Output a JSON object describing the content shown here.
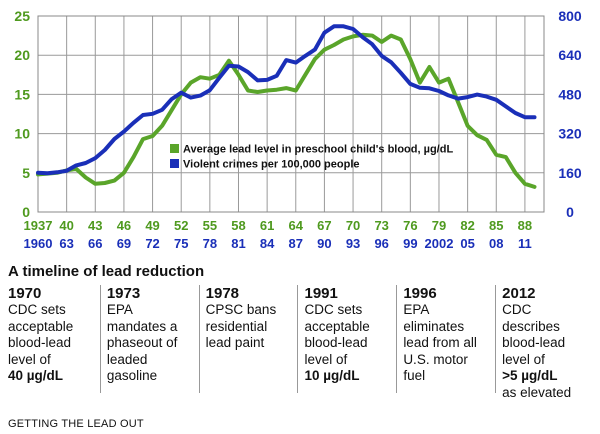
{
  "chart_data": {
    "type": "line",
    "title": "",
    "left_axis": {
      "ylim": [
        0,
        25
      ],
      "ticks": [
        0,
        5,
        10,
        15,
        20,
        25
      ],
      "color": "#5aa52a"
    },
    "right_axis": {
      "ylim": [
        0,
        800
      ],
      "ticks": [
        0,
        160,
        320,
        480,
        640,
        800
      ],
      "color": "#1a2fb8"
    },
    "x_labels_lead_years": [
      "1937",
      "40",
      "43",
      "46",
      "49",
      "52",
      "55",
      "58",
      "61",
      "64",
      "67",
      "70",
      "73",
      "76",
      "79",
      "82",
      "85",
      "88"
    ],
    "x_labels_crime_years": [
      "1960",
      "63",
      "66",
      "69",
      "72",
      "75",
      "78",
      "81",
      "84",
      "87",
      "90",
      "93",
      "96",
      "99",
      "2002",
      "05",
      "08",
      "11"
    ],
    "grid": true,
    "legend_position": "center",
    "series": [
      {
        "name": "Average lead level in preschool child's blood, µg/dL",
        "axis": "left",
        "color": "#5aa52a",
        "x": [
          1937,
          1938,
          1939,
          1940,
          1941,
          1942,
          1943,
          1944,
          1945,
          1946,
          1947,
          1948,
          1949,
          1950,
          1951,
          1952,
          1953,
          1954,
          1955,
          1956,
          1957,
          1958,
          1959,
          1960,
          1961,
          1962,
          1963,
          1964,
          1965,
          1966,
          1967,
          1968,
          1969,
          1970,
          1971,
          1972,
          1973,
          1974,
          1975,
          1976,
          1977,
          1978,
          1979,
          1980,
          1981,
          1982,
          1983,
          1984,
          1985,
          1986,
          1987,
          1988,
          1989
        ],
        "values": [
          4.8,
          4.9,
          5.0,
          5.3,
          5.5,
          4.4,
          3.6,
          3.7,
          4.0,
          5.0,
          7.0,
          9.3,
          9.7,
          11.0,
          13.0,
          15.0,
          16.5,
          17.2,
          17.0,
          17.5,
          19.3,
          17.5,
          15.5,
          15.3,
          15.5,
          15.6,
          15.8,
          15.5,
          17.5,
          19.5,
          20.7,
          21.3,
          22.0,
          22.4,
          22.6,
          22.5,
          21.7,
          22.5,
          22.0,
          19.5,
          16.5,
          18.5,
          16.5,
          17.0,
          14.0,
          11.0,
          9.8,
          9.2,
          7.3,
          7.0,
          5.0,
          3.6,
          3.2
        ]
      },
      {
        "name": "Violent crimes per 100,000 people",
        "axis": "right",
        "color": "#1a2fb8",
        "x": [
          1960,
          1961,
          1962,
          1963,
          1964,
          1965,
          1966,
          1967,
          1968,
          1969,
          1970,
          1971,
          1972,
          1973,
          1974,
          1975,
          1976,
          1977,
          1978,
          1979,
          1980,
          1981,
          1982,
          1983,
          1984,
          1985,
          1986,
          1987,
          1988,
          1989,
          1990,
          1991,
          1992,
          1993,
          1994,
          1995,
          1996,
          1997,
          1998,
          1999,
          2000,
          2001,
          2002,
          2003,
          2004,
          2005,
          2006,
          2007,
          2008,
          2009,
          2010,
          2011,
          2012
        ],
        "values": [
          160,
          158,
          162,
          168,
          190,
          200,
          220,
          253,
          298,
          328,
          364,
          396,
          401,
          417,
          461,
          487,
          467,
          475,
          497,
          548,
          597,
          594,
          571,
          537,
          539,
          556,
          620,
          610,
          637,
          663,
          732,
          758,
          758,
          747,
          714,
          685,
          637,
          611,
          568,
          523,
          507,
          505,
          494,
          476,
          463,
          469,
          479,
          471,
          458,
          431,
          404,
          387,
          387
        ]
      }
    ]
  },
  "legend": {
    "lead_label": "Average lead level in preschool child's blood, µg/dL",
    "crime_label": "Violent crimes per 100,000 people"
  },
  "timeline": {
    "title": "A timeline of lead reduction",
    "events": [
      {
        "year": "1970",
        "text": "CDC sets acceptable blood-lead level of",
        "value": "40 µg/dL",
        "after": ""
      },
      {
        "year": "1973",
        "text": "EPA mandates a phaseout of leaded gasoline",
        "value": "",
        "after": ""
      },
      {
        "year": "1978",
        "text": "CPSC bans residential lead paint",
        "value": "",
        "after": ""
      },
      {
        "year": "1991",
        "text": "CDC sets acceptable blood-lead level of",
        "value": "10 µg/dL",
        "after": ""
      },
      {
        "year": "1996",
        "text": "EPA eliminates lead from all U.S. motor fuel",
        "value": "",
        "after": ""
      },
      {
        "year": "2012",
        "text": "CDC describes blood-lead level of",
        "value": ">5 µg/dL",
        "after": "as elevated"
      }
    ]
  },
  "caption": "GETTING THE LEAD OUT"
}
